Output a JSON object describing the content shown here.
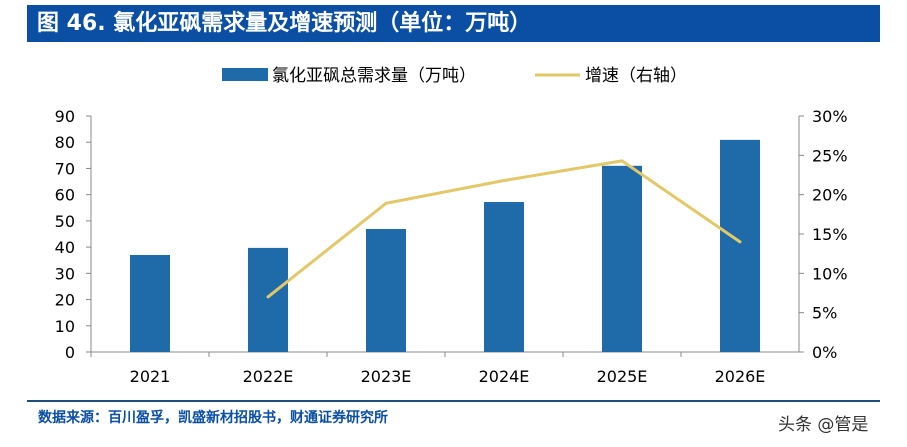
{
  "title": "图 46. 氯化亚砜需求量及增速预测（单位：万吨）",
  "source": "数据来源：百川盈孚，凯盛新材招股书，财通证券研究所",
  "watermark": "头条 @管是",
  "colors": {
    "bar": "#1f6aa8",
    "line": "#e3c86a",
    "title_bg": "#0a4fa3"
  },
  "chart_data": {
    "type": "bar+line",
    "categories": [
      "2021",
      "2022E",
      "2023E",
      "2024E",
      "2025E",
      "2026E"
    ],
    "series": [
      {
        "name": "氯化亚砜总需求量（万吨）",
        "type": "bar",
        "axis": "left",
        "values": [
          37.0,
          39.7,
          46.9,
          57.2,
          71.0,
          80.9
        ]
      },
      {
        "name": "增速（右轴）",
        "type": "line",
        "axis": "right",
        "values": [
          null,
          7.0,
          18.9,
          21.8,
          24.3,
          14.0
        ]
      }
    ],
    "y_left": {
      "range": [
        0,
        90
      ],
      "ticks": [
        "0",
        "10",
        "20",
        "30",
        "40",
        "50",
        "60",
        "70",
        "80",
        "90"
      ]
    },
    "y_right": {
      "range": [
        0,
        30
      ],
      "ticks": [
        "0%",
        "5%",
        "10%",
        "15%",
        "20%",
        "25%",
        "30%"
      ]
    },
    "legend": "top",
    "grid": false
  }
}
